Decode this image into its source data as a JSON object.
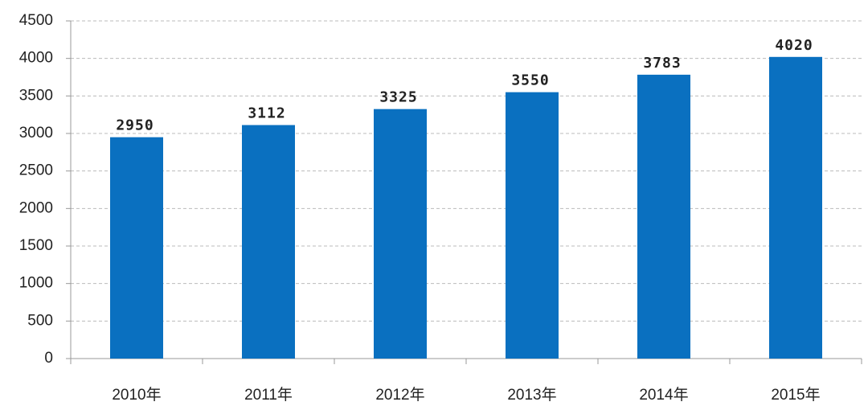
{
  "chart_data": {
    "type": "bar",
    "categories": [
      "2010年",
      "2011年",
      "2012年",
      "2013年",
      "2014年",
      "2015年"
    ],
    "values": [
      2950,
      3112,
      3325,
      3550,
      3783,
      4020
    ],
    "color": "#0a70c0",
    "ylim": [
      0,
      4500
    ],
    "yticks": [
      0,
      500,
      1000,
      1500,
      2000,
      2500,
      3000,
      3500,
      4000,
      4500
    ],
    "grid": true
  }
}
